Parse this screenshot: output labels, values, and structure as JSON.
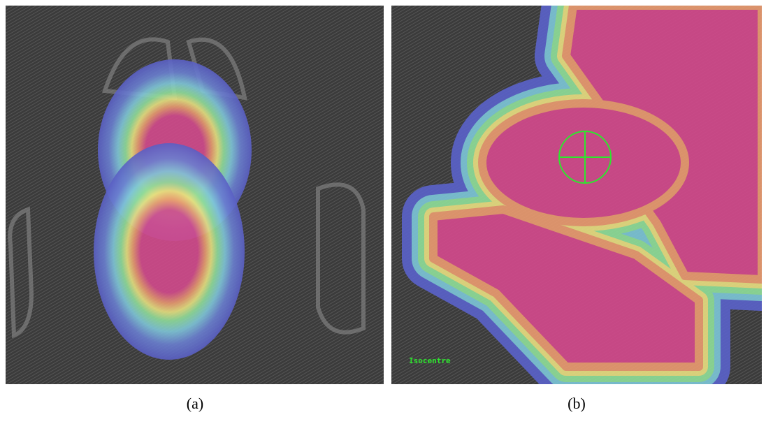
{
  "panels": [
    {
      "label": "(a)"
    },
    {
      "label": "(b)",
      "annotation": "Isocentre"
    }
  ]
}
